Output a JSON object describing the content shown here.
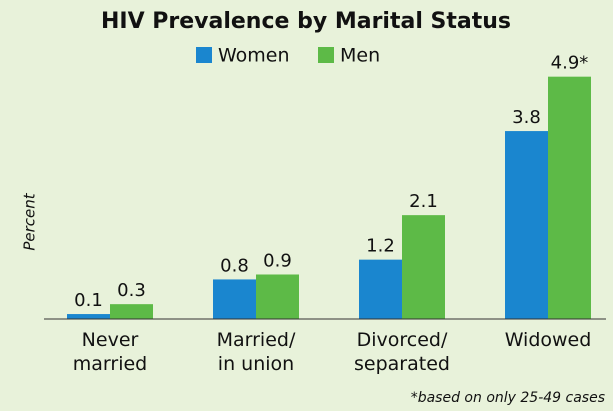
{
  "chart_data": {
    "type": "bar",
    "title": "HIV Prevalence by Marital Status",
    "ylabel": "Percent",
    "categories": [
      "Never\nmarried",
      "Married/\nin union",
      "Divorced/\nseparated",
      "Widowed"
    ],
    "series": [
      {
        "name": "Women",
        "color": "#1a86cf",
        "values": [
          0.1,
          0.8,
          1.2,
          3.8
        ]
      },
      {
        "name": "Men",
        "color": "#5dba47",
        "values": [
          0.3,
          0.9,
          2.1,
          4.9
        ],
        "value_labels": [
          "0.3",
          "0.9",
          "2.1",
          "4.9*"
        ]
      }
    ],
    "ylim": [
      0,
      5.5
    ],
    "note": "*based on only 25-49 cases"
  }
}
